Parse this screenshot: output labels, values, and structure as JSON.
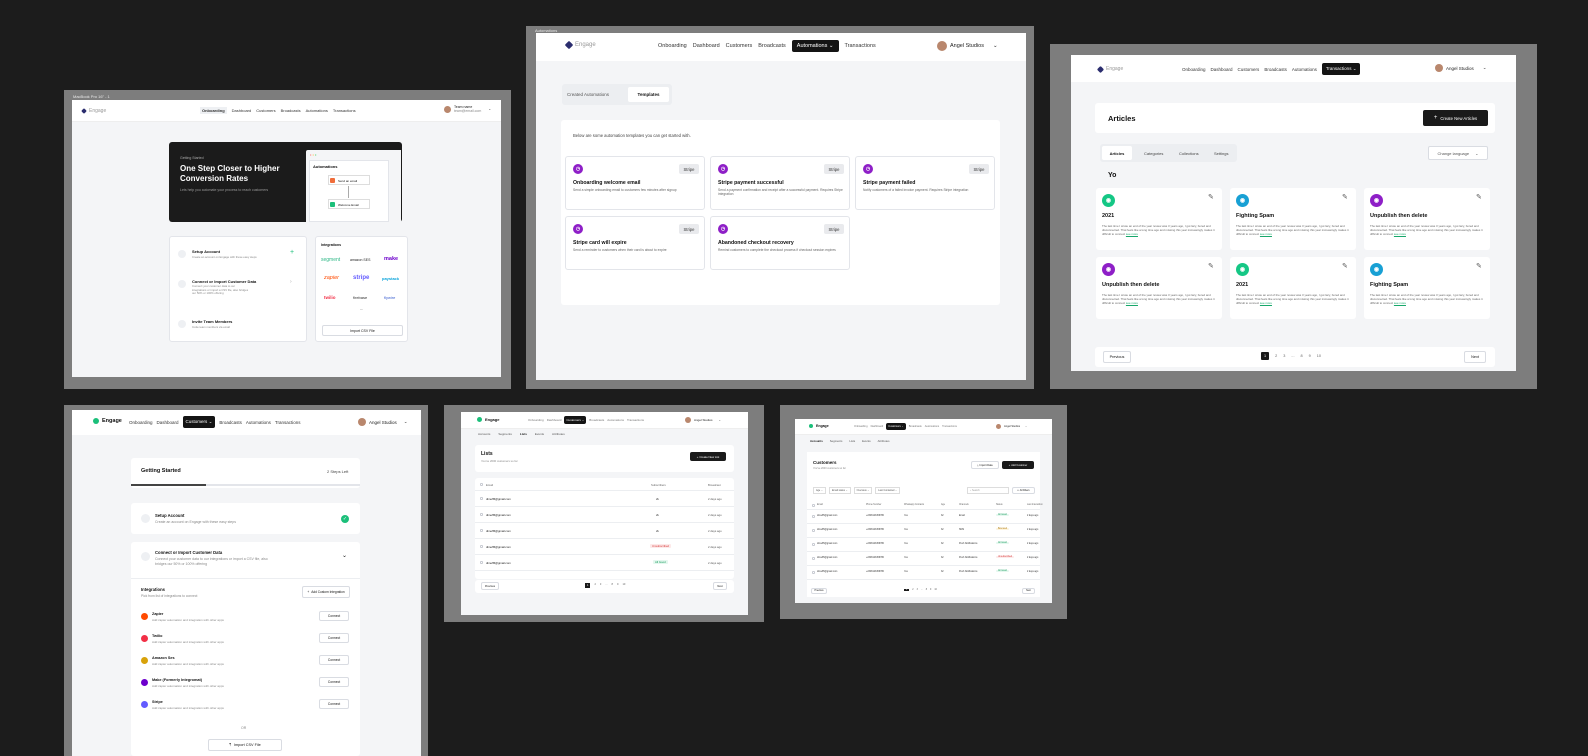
{
  "app": {
    "brand": "Engage",
    "user_name": "Angel Studios"
  },
  "colors": {
    "background": "#1c1c1c",
    "frame": "#7d7d7d",
    "accent_green": "#1bbf7a",
    "accent_purple": "#8e1fc7",
    "accent_blue": "#18a0d4",
    "nav_active": "#141414"
  },
  "nav_labels": {
    "onboarding": "Onboarding",
    "dashboard": "Dashboard",
    "customers": "Customers",
    "broadcasts": "Broadcasts",
    "automations": "Automations",
    "transactions": "Transactions"
  },
  "onboarding": {
    "frame_label": "MacBook Pro 16\" - 1",
    "team_name": "Team name",
    "team_email": "team@email.com",
    "hero_kicker": "Getting Started",
    "hero_title": "One Step Closer to Higher Conversion Rates",
    "hero_text": "Lets help you automate your process to reach customers",
    "mock_title": "Automations",
    "mock_step1": "Send an email",
    "mock_step2": "Welcome Email",
    "steps": [
      {
        "title": "Setup Account",
        "desc": "Create an account on Engage with these easy steps"
      },
      {
        "title": "Connect or Import Customer Data",
        "desc": "Connect your customer data to our integrations or import a CSV file, also bridges our 50% or 100% offering"
      },
      {
        "title": "Invite Team Members",
        "desc": "Invite team members via email"
      }
    ],
    "integrations_title": "Integrations",
    "integration_logos": [
      "segment",
      "amazon SES",
      "make",
      "zapier",
      "stripe",
      "paystack",
      "twilio",
      "firebase",
      "flywire"
    ],
    "import_button": "Import CSV File"
  },
  "automations": {
    "frame_label": "Automations",
    "tab_created": "Created Automations",
    "tab_templates": "Templates",
    "intro": "Below are some automation templates you can get started with.",
    "templates": [
      {
        "title": "Onboarding welcome email",
        "desc": "Send a simple onboarding email to customers few minutes after signup",
        "tag": "Stripe"
      },
      {
        "title": "Stripe payment successful",
        "desc": "Send a payment confirmation and receipt after a successful payment. Requires Stripe integration",
        "tag": "Stripe"
      },
      {
        "title": "Stripe payment failed",
        "desc": "Notify customers of a failed invoice payment. Requires Stripe integration",
        "tag": "Stripe"
      },
      {
        "title": "Stripe card will expire",
        "desc": "Send a reminder to customers when their card is about to expire",
        "tag": "Stripe"
      },
      {
        "title": "Abandoned checkout recovery",
        "desc": "Remind customers to complete the checkout process if checkout session expires",
        "tag": "Stripe"
      }
    ]
  },
  "articles": {
    "title": "Articles",
    "create_button": "Create New Articles",
    "tabs": [
      "Articles",
      "Categories",
      "Collections",
      "Settings"
    ],
    "language_button": "Change language",
    "section": "Yo",
    "cards": [
      {
        "title": "2021",
        "color": "green"
      },
      {
        "title": "Fighting Spam",
        "color": "blue"
      },
      {
        "title": "Unpublish then delete",
        "color": "purple"
      },
      {
        "title": "Unpublish then delete",
        "color": "purple"
      },
      {
        "title": "2021",
        "color": "green"
      },
      {
        "title": "Fighting Spam",
        "color": "blue"
      }
    ],
    "card_text": "The last time I wrote an end of the year review was 3 years ago, I got lazy, bored and disconnected. That feels like a long time ago and missing this year increasingly makes it difficult to connect",
    "see_more": "see more",
    "prev": "Previous",
    "next": "Next",
    "pages": [
      "1",
      "2",
      "3",
      "...",
      "8",
      "9",
      "10"
    ]
  },
  "getting_started": {
    "title": "Getting Started",
    "steps_left": "2 Steps Left",
    "step1_title": "Setup Account",
    "step1_desc": "Create an account on Engage with these easy steps",
    "step2_title": "Connect or Import Customer Data",
    "step2_desc": "Connect your customer data to our integrations or import a CSV file, also bridges our 50% or 100% offering",
    "integrations_title": "Integrations",
    "integrations_desc": "Pick from list of integrations to connect",
    "custom_button": "Add Custom Integration",
    "integrations": [
      {
        "name": "Zapier",
        "desc": "Add zapier automation and integration with other apps",
        "action": "Connect",
        "color": "#ff4a00"
      },
      {
        "name": "Twilio",
        "desc": "Add zapier automation and integration with other apps",
        "action": "Connect",
        "color": "#f22f46"
      },
      {
        "name": "Amazon Ses",
        "desc": "Add zapier automation and integration with other apps",
        "action": "Connect",
        "color": "#d8a20a"
      },
      {
        "name": "Make (Formerly Integromat)",
        "desc": "Add zapier automation and integration with other apps",
        "action": "Connect",
        "color": "#6d00cc"
      },
      {
        "name": "Stripe",
        "desc": "Add zapier automation and integration with other apps",
        "action": "Connect",
        "color": "#635bff"
      }
    ],
    "or": "OR",
    "import_button": "Import CSV File"
  },
  "lists": {
    "subtabs": [
      "Accounts",
      "Segments",
      "Lists",
      "Events",
      "Attributes"
    ],
    "title": "Lists",
    "subtitle": "You've 2000 customers so far",
    "create_button": "Create New List",
    "col_email": "Email",
    "col_subs": "Subscribers",
    "col_broadcast": "Broadcast",
    "rows": [
      {
        "email": "dimeff6@gmail.com",
        "subs": "2k",
        "time": "2 days ago"
      },
      {
        "email": "dimeff6@gmail.com",
        "subs": "2k",
        "time": "2 days ago"
      },
      {
        "email": "dimeff6@gmail.com",
        "subs": "2k",
        "time": "2 days ago"
      },
      {
        "email": "dimeff6@gmail.com",
        "subs": "Unsubscribed",
        "time": "2 days ago"
      },
      {
        "email": "dimeff6@gmail.com",
        "subs": "All Good",
        "time": "2 days ago"
      }
    ],
    "prev": "Previous",
    "next": "Next",
    "pages": [
      "1",
      "2",
      "3",
      "...",
      "8",
      "9",
      "10"
    ]
  },
  "customers": {
    "subtabs": [
      "Accounts",
      "Segments",
      "Lists",
      "Events",
      "Attributes"
    ],
    "title": "Customers",
    "subtitle": "You've 2000 customers so far",
    "import_button": "Import Data",
    "add_button": "Add Customer",
    "filters": [
      "Age",
      "Email status",
      "Overview",
      "Last Contacted"
    ],
    "search_placeholder": "Search",
    "filter_button": "All Filters",
    "columns": [
      "Email",
      "Phone Number",
      "Whatsapp Contacts",
      "Age",
      "Channels",
      "Status",
      "Last Interaction"
    ],
    "rows": [
      {
        "email": "dimeff6@gmail.com",
        "phone": "+2348123456780",
        "wa": "Yes",
        "age": "32",
        "channel": "Email",
        "status": "All Good",
        "last": "2 days ago"
      },
      {
        "email": "dimeff6@gmail.com",
        "phone": "+2348123456780",
        "wa": "Yes",
        "age": "32",
        "channel": "SMS",
        "status": "Bounced",
        "last": "2 days ago"
      },
      {
        "email": "dimeff6@gmail.com",
        "phone": "+2348123456780",
        "wa": "Yes",
        "age": "32",
        "channel": "Push Notifications",
        "status": "All Good",
        "last": "2 days ago"
      },
      {
        "email": "dimeff6@gmail.com",
        "phone": "+2348123456780",
        "wa": "Yes",
        "age": "32",
        "channel": "Push Notifications",
        "status": "Unsubscribed",
        "last": "2 days ago"
      },
      {
        "email": "dimeff6@gmail.com",
        "phone": "+2348123456780",
        "wa": "Yes",
        "age": "32",
        "channel": "Push Notifications",
        "status": "All Good",
        "last": "2 days ago"
      }
    ],
    "prev": "Previous",
    "next": "Next",
    "pages": [
      "1",
      "2",
      "3",
      "...",
      "8",
      "9",
      "10"
    ]
  }
}
